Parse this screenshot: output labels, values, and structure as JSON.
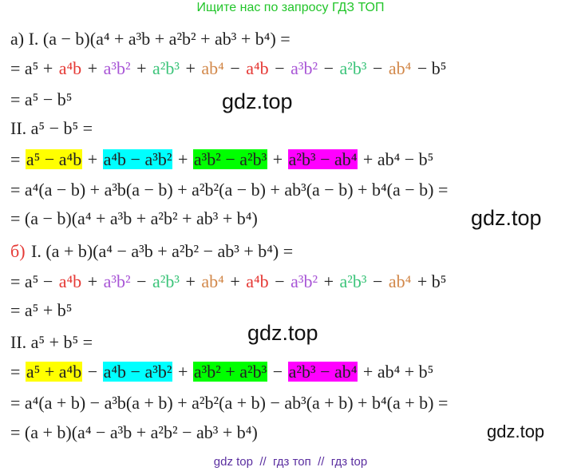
{
  "header": "Ищите нас по запросу ГДЗ ТОП",
  "lines": [
    [
      {
        "text": "а) I. (a − b)(a⁴ + a³b + a²b² + ab³ + b⁴) ="
      }
    ],
    [
      {
        "text": "= a⁵ + "
      },
      {
        "text": "a⁴b",
        "color": "#e53935"
      },
      {
        "text": " + "
      },
      {
        "text": "a³b²",
        "color": "#a855d6"
      },
      {
        "text": " + "
      },
      {
        "text": "a²b³",
        "color": "#3cc47a"
      },
      {
        "text": " + "
      },
      {
        "text": "ab⁴",
        "color": "#d2884a"
      },
      {
        "text": " − "
      },
      {
        "text": "a⁴b",
        "color": "#e53935"
      },
      {
        "text": " − "
      },
      {
        "text": "a³b²",
        "color": "#a855d6"
      },
      {
        "text": " − "
      },
      {
        "text": "a²b³",
        "color": "#3cc47a"
      },
      {
        "text": " − "
      },
      {
        "text": "ab⁴",
        "color": "#d2884a"
      },
      {
        "text": " − b⁵"
      }
    ],
    [
      {
        "text": "= a⁵ − b⁵"
      }
    ],
    [
      {
        "text": "II. a⁵ − b⁵ ="
      }
    ],
    [
      {
        "text": "= "
      },
      {
        "text": "a⁵ − a⁴b",
        "highlight": "#ffff00"
      },
      {
        "text": " + "
      },
      {
        "text": "a⁴b − a³b²",
        "highlight": "#00ffff"
      },
      {
        "text": " + "
      },
      {
        "text": "a³b² − a²b³",
        "highlight": "#00ff00"
      },
      {
        "text": " + "
      },
      {
        "text": "a²b³ − ab⁴",
        "highlight": "#ff00ff"
      },
      {
        "text": " + ab⁴ − b⁵"
      }
    ],
    [
      {
        "text": "= a⁴(a − b) + a³b(a − b) + a²b²(a − b) + ab³(a − b) + b⁴(a − b) ="
      }
    ],
    [
      {
        "text": "= (a − b)(a⁴ + a³b + a²b² + ab³ + b⁴)"
      }
    ],
    [
      {
        "text": "б)",
        "color": "#e53935"
      },
      {
        "text": " I. (a + b)(a⁴ − a³b + a²b² − ab³ + b⁴) ="
      }
    ],
    [
      {
        "text": "= a⁵ − "
      },
      {
        "text": "a⁴b",
        "color": "#e53935"
      },
      {
        "text": " + "
      },
      {
        "text": "a³b²",
        "color": "#a855d6"
      },
      {
        "text": " − "
      },
      {
        "text": "a²b³",
        "color": "#3cc47a"
      },
      {
        "text": " + "
      },
      {
        "text": "ab⁴",
        "color": "#d2884a"
      },
      {
        "text": " + "
      },
      {
        "text": "a⁴b",
        "color": "#e53935"
      },
      {
        "text": " − "
      },
      {
        "text": "a³b²",
        "color": "#a855d6"
      },
      {
        "text": " + "
      },
      {
        "text": "a²b³",
        "color": "#3cc47a"
      },
      {
        "text": " − "
      },
      {
        "text": "ab⁴",
        "color": "#d2884a"
      },
      {
        "text": " + b⁵"
      }
    ],
    [
      {
        "text": "= a⁵ + b⁵"
      }
    ],
    [
      {
        "text": "II. a⁵ + b⁵ ="
      }
    ],
    [
      {
        "text": "= "
      },
      {
        "text": "a⁵ + a⁴b",
        "highlight": "#ffff00"
      },
      {
        "text": " − "
      },
      {
        "text": "a⁴b − a³b²",
        "highlight": "#00ffff"
      },
      {
        "text": " + "
      },
      {
        "text": "a³b² + a²b³",
        "highlight": "#00ff00"
      },
      {
        "text": " − "
      },
      {
        "text": "a²b³ − ab⁴",
        "highlight": "#ff00ff"
      },
      {
        "text": " + ab⁴ + b⁵"
      }
    ],
    [
      {
        "text": "= a⁴(a + b) − a³b(a + b) + a²b²(a + b) − ab³(a + b) + b⁴(a + b) ="
      }
    ],
    [
      {
        "text": "= (a + b)(a⁴ − a³b + a²b² − ab³ + b⁴)"
      }
    ]
  ],
  "watermarks": [
    "gdz.top",
    "gdz.top",
    "gdz.top",
    "gdz.top"
  ],
  "footer": "gdz top  //  гдз топ  //  гдз top"
}
